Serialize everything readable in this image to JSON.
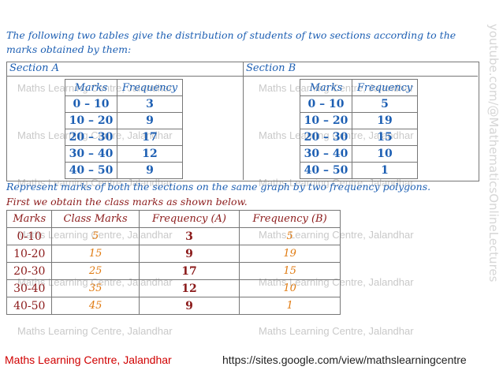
{
  "intro": "The following two tables give the distribution of students of two sections according to the marks obtained by them:",
  "section_a": {
    "label": "Section A",
    "headers": [
      "Marks",
      "Frequency"
    ],
    "rows": [
      [
        "0 – 10",
        3
      ],
      [
        "10 – 20",
        9
      ],
      [
        "20 – 30",
        17
      ],
      [
        "30 – 40",
        12
      ],
      [
        "40 – 50",
        9
      ]
    ]
  },
  "section_b": {
    "label": "Section B",
    "headers": [
      "Marks",
      "Frequency"
    ],
    "rows": [
      [
        "0 – 10",
        5
      ],
      [
        "10 – 20",
        19
      ],
      [
        "20 – 30",
        15
      ],
      [
        "30 – 40",
        10
      ],
      [
        "40 – 50",
        1
      ]
    ]
  },
  "question": "Represent marks of both the sections on the same graph by two frequency polygons.",
  "step": "First we obtain the class marks as shown below.",
  "class_table": {
    "headers": [
      "Marks",
      "Class Marks",
      "Frequency (A)",
      "Frequency (B)"
    ],
    "rows": [
      [
        "0-10",
        5,
        3,
        5
      ],
      [
        "10-20",
        15,
        9,
        19
      ],
      [
        "20-30",
        25,
        17,
        15
      ],
      [
        "30-40",
        35,
        12,
        10
      ],
      [
        "40-50",
        45,
        9,
        1
      ]
    ]
  },
  "watermark": "Maths Learning Centre, Jalandhar",
  "side_text": "youtube.com/@MathematicsOnlineLectures",
  "footer": {
    "left": "Maths Learning Centre, Jalandhar",
    "right": "https://sites.google.com/view/mathslearningcentre"
  }
}
